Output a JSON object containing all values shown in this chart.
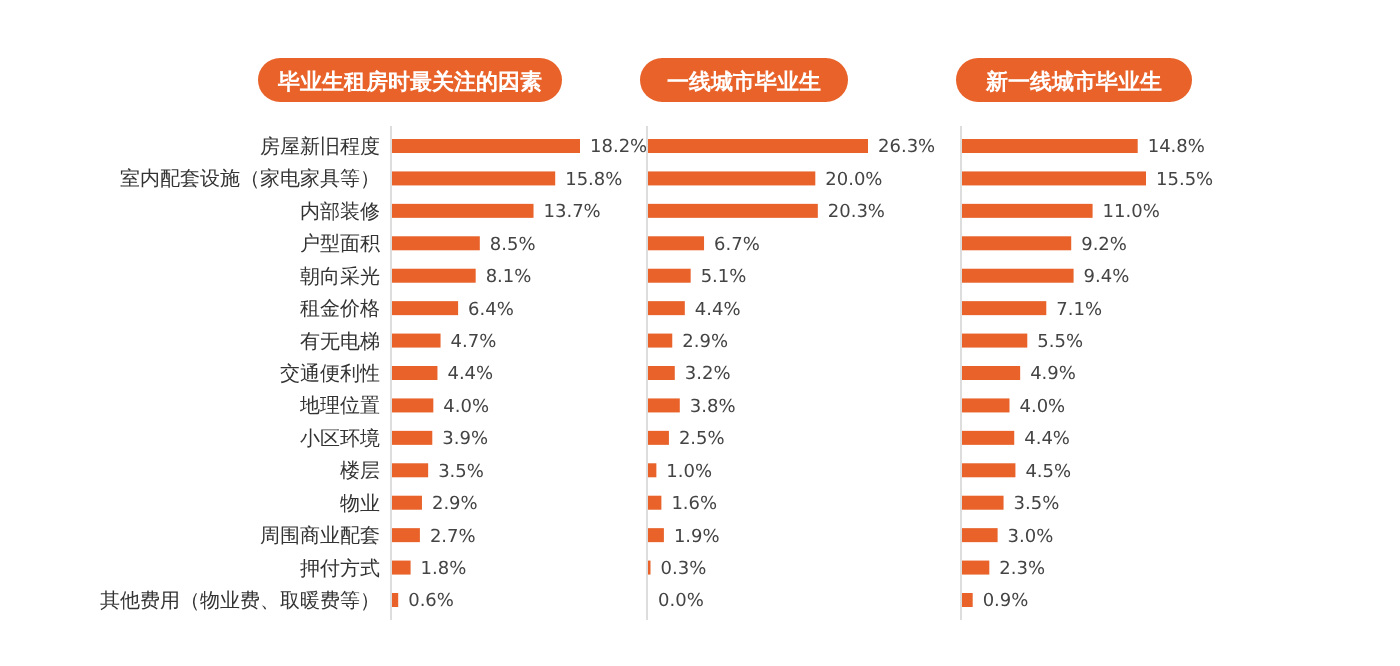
{
  "chart_data": [
    {
      "type": "bar",
      "orientation": "horizontal",
      "title": "毕业生租房时最关注的因素",
      "categories": [
        "房屋新旧程度",
        "室内配套设施（家电家具等）",
        "内部装修",
        "户型面积",
        "朝向采光",
        "租金价格",
        "有无电梯",
        "交通便利性",
        "地理位置",
        "小区环境",
        "楼层",
        "物业",
        "周围商业配套",
        "押付方式",
        "其他费用（物业费、取暖费等）"
      ],
      "values": [
        18.2,
        15.8,
        13.7,
        8.5,
        8.1,
        6.4,
        4.7,
        4.4,
        4.0,
        3.9,
        3.5,
        2.9,
        2.7,
        1.8,
        0.6
      ],
      "value_labels": [
        "18.2%",
        "15.8%",
        "13.7%",
        "8.5%",
        "8.1%",
        "6.4%",
        "4.7%",
        "4.4%",
        "4.0%",
        "3.9%",
        "3.5%",
        "2.9%",
        "2.7%",
        "1.8%",
        "0.6%"
      ],
      "color": "#e8622a",
      "tick_labels": "y"
    },
    {
      "type": "bar",
      "orientation": "horizontal",
      "title": "一线城市毕业生",
      "categories": [
        null,
        null,
        null,
        null,
        null,
        null,
        null,
        null,
        null,
        null,
        null,
        null,
        null,
        null,
        null
      ],
      "values": [
        26.3,
        20.0,
        20.3,
        6.7,
        5.1,
        4.4,
        2.9,
        3.2,
        3.8,
        2.5,
        1.0,
        1.6,
        1.9,
        0.3,
        0.0
      ],
      "value_labels": [
        "26.3%",
        "20.0%",
        "20.3%",
        "6.7%",
        "5.1%",
        "4.4%",
        "2.9%",
        "3.2%",
        "3.8%",
        "2.5%",
        "1.0%",
        "1.6%",
        "1.9%",
        "0.3%",
        "0.0%"
      ],
      "color": "#e8622a",
      "tick_labels": false
    },
    {
      "type": "bar",
      "orientation": "horizontal",
      "title": "新一线城市毕业生",
      "categories": [
        null,
        null,
        null,
        null,
        null,
        null,
        null,
        null,
        null,
        null,
        null,
        null,
        null,
        null,
        null
      ],
      "values": [
        14.8,
        15.5,
        11.0,
        9.2,
        9.4,
        7.1,
        5.5,
        4.9,
        4.0,
        4.4,
        4.5,
        3.5,
        3.0,
        2.3,
        0.9
      ],
      "value_labels": [
        "14.8%",
        "15.5%",
        "11.0%",
        "9.2%",
        "9.4%",
        "7.1%",
        "5.5%",
        "4.9%",
        "4.0%",
        "4.4%",
        "4.5%",
        "3.5%",
        "3.0%",
        "2.3%",
        "0.9%"
      ],
      "color": "#e8622a",
      "tick_labels": false
    }
  ]
}
